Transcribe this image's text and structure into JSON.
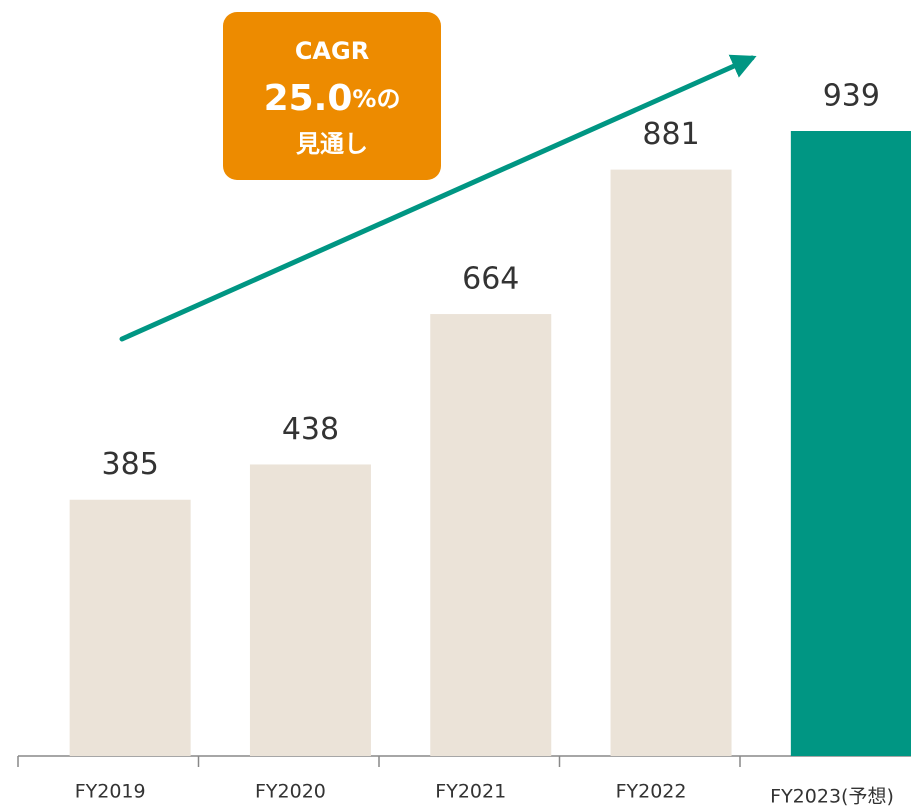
{
  "chart_data": {
    "type": "bar",
    "categories": [
      "FY2019",
      "FY2020",
      "FY2021",
      "FY2022",
      "FY2023(予想)"
    ],
    "values": [
      385,
      438,
      664,
      881,
      939
    ],
    "colors": [
      "#ebe3d8",
      "#ebe3d8",
      "#ebe3d8",
      "#ebe3d8",
      "#009683"
    ],
    "annotation": {
      "lines": [
        "CAGR",
        "25.0",
        "%の",
        "見通し"
      ],
      "color": "#ed8b00"
    },
    "trend_arrow_color": "#009683"
  }
}
